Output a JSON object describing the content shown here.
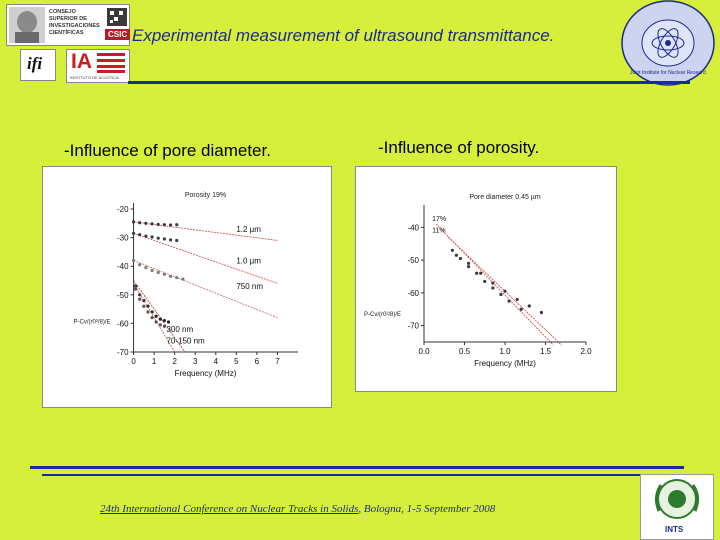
{
  "header": {
    "title": "Experimental measurement of ultrasound transmittance.",
    "logo_csic_text": "CONSEJO SUPERIOR DE INVESTIGACIONES CIENTÍFICAS",
    "logo_csic_badge": "CSIC",
    "logo_ifi": "ifi",
    "logo_ia": "IA",
    "logo_ia_caption": "INSTITUTO DE ACÚSTICA",
    "logo_jinr": "Joint Institute for Nuclear Research"
  },
  "left_section": {
    "heading": "-Influence of pore diameter."
  },
  "right_section": {
    "heading": "-Influence of porosity."
  },
  "chart_data": [
    {
      "type": "scatter",
      "title": "Porosity 19%",
      "xlabel": "Frequency (MHz)",
      "ylabel": "",
      "xlim": [
        -1,
        8
      ],
      "ylim": [
        -70,
        -20
      ],
      "xticks": [
        "0",
        "1",
        "2",
        "3",
        "4",
        "5",
        "6",
        "7"
      ],
      "yticks": [
        "-20",
        "-30",
        "-40",
        "-50",
        "-60",
        "-70"
      ],
      "axis_formula": "P-Cv/(r0²/8)/E",
      "series": [
        {
          "name": "1.2 µm",
          "x": [
            0,
            0.3,
            0.6,
            0.9,
            1.2,
            1.5,
            1.8,
            2.1
          ],
          "y": [
            -24.5,
            -24.8,
            -25.0,
            -25.2,
            -25.4,
            -25.5,
            -25.6,
            -25.5
          ],
          "fit_x": [
            0,
            7
          ],
          "fit_y": [
            -24.5,
            -31
          ]
        },
        {
          "name": "1.0 µm",
          "x": [
            0,
            0.3,
            0.6,
            0.9,
            1.2,
            1.5,
            1.8,
            2.1
          ],
          "y": [
            -28.5,
            -29.0,
            -29.5,
            -29.8,
            -30.2,
            -30.5,
            -30.8,
            -31.0
          ],
          "fit_x": [
            0,
            7
          ],
          "fit_y": [
            -28.5,
            -46
          ]
        },
        {
          "name": "750 nm",
          "x": [
            0,
            0.3,
            0.6,
            0.9,
            1.2,
            1.5,
            1.8,
            2.1,
            2.4
          ],
          "y": [
            -38.0,
            -39.5,
            -40.5,
            -41.5,
            -42.2,
            -42.8,
            -43.5,
            -44.0,
            -44.5
          ],
          "fit_x": [
            0,
            7
          ],
          "fit_y": [
            -38,
            -58
          ]
        },
        {
          "name": "300 nm",
          "x": [
            0.1,
            0.3,
            0.5,
            0.7,
            0.9,
            1.1,
            1.3,
            1.5,
            1.7
          ],
          "y": [
            -47.0,
            -50.0,
            -52.0,
            -54.0,
            -56.0,
            -57.5,
            -58.5,
            -59.0,
            -59.5
          ],
          "fit_x": [
            0,
            2.5
          ],
          "fit_y": [
            -45,
            -70
          ]
        },
        {
          "name": "70-150 nm",
          "x": [
            0.1,
            0.3,
            0.5,
            0.7,
            0.9,
            1.1,
            1.3,
            1.5
          ],
          "y": [
            -48.0,
            -51.5,
            -54.0,
            -56.0,
            -58.0,
            -59.5,
            -60.5,
            -61.0
          ],
          "fit_x": [
            0,
            2.0
          ],
          "fit_y": [
            -46,
            -70
          ]
        }
      ]
    },
    {
      "type": "scatter",
      "title": "Pore diameter 0.45 µm",
      "xlabel": "Frequency (MHz)",
      "ylabel": "",
      "xlim": [
        0,
        2
      ],
      "ylim": [
        -75,
        -35
      ],
      "xticks": [
        "0.0",
        "0.5",
        "1.0",
        "1.5",
        "2.0"
      ],
      "yticks": [
        "-40",
        "-50",
        "-60",
        "-70"
      ],
      "axis_formula": "P-Cv/(r0²/8)/E",
      "series": [
        {
          "name": "17%",
          "x": [
            0.35,
            0.45,
            0.55,
            0.65,
            0.75,
            0.85,
            0.95,
            1.05,
            1.2
          ],
          "y": [
            -47.0,
            -49.5,
            -52.0,
            -54.0,
            -56.5,
            -58.5,
            -60.5,
            -62.5,
            -65.0
          ],
          "fit_x": [
            0.15,
            1.6
          ],
          "fit_y": [
            -39,
            -76
          ]
        },
        {
          "name": "11%",
          "x": [
            0.4,
            0.55,
            0.7,
            0.85,
            1.0,
            1.15,
            1.3,
            1.45
          ],
          "y": [
            -48.5,
            -51.0,
            -54.0,
            -57.0,
            -59.5,
            -62.0,
            -64.0,
            -66.0
          ],
          "fit_x": [
            0.3,
            1.7
          ],
          "fit_y": [
            -43,
            -76
          ]
        }
      ]
    }
  ],
  "footer": {
    "conference": "24th International Conference on Nuclear Tracks in Solids",
    "rest": ", Bologna, 1-5 September 2008",
    "logo_ints": "INTS"
  }
}
